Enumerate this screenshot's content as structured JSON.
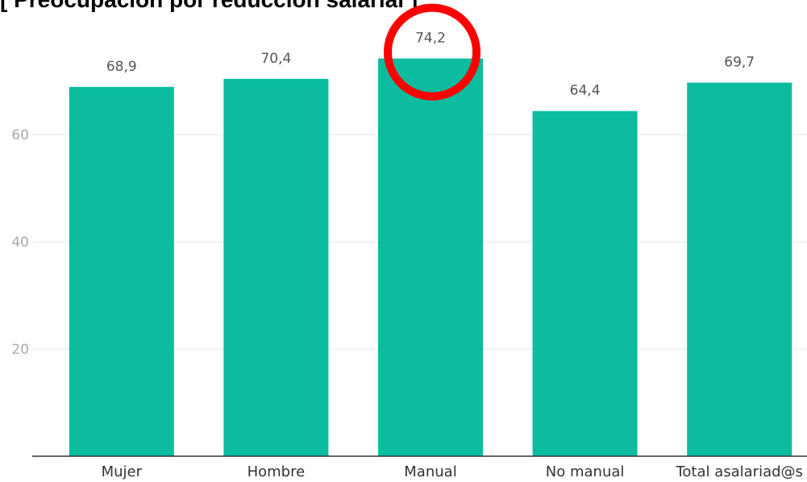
{
  "chart_data": {
    "type": "bar",
    "title": "[ Preocupación por reducción salarial ]",
    "categories": [
      "Mujer",
      "Hombre",
      "Manual",
      "No manual",
      "Total asalariad@s"
    ],
    "values": [
      68.9,
      70.4,
      74.2,
      64.4,
      69.7
    ],
    "value_labels": [
      "68,9",
      "70,4",
      "74,2",
      "64,4",
      "69,7"
    ],
    "yticks": [
      "20",
      "40",
      "60"
    ],
    "ytick_values": [
      20,
      40,
      60
    ],
    "ylim": [
      0,
      80
    ],
    "grid": true,
    "bar_color": "#0BBC9F",
    "highlight": {
      "category": "Manual",
      "shape": "circle",
      "color": "#FF0000"
    }
  }
}
